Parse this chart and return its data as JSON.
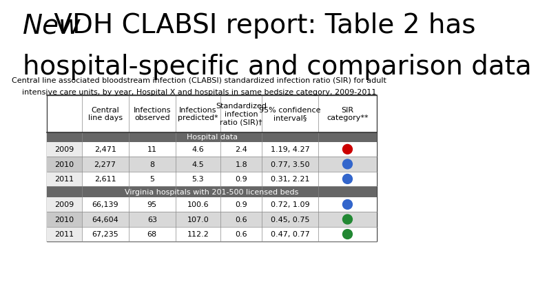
{
  "title_italic_part": "New",
  "title_normal_part": " VDH CLABSI report: Table 2 has",
  "title_line2": "hospital-specific and comparison data",
  "subtitle_line1": "Central line associated bloodstream infection (CLABSI) standardized infection ratio (SIR) for adult",
  "subtitle_line2": "intensive care units, by year, Hospital X and hospitals in same bedsize category, 2009-2011",
  "col_headers": [
    "Central\nline days",
    "Infections\nobserved",
    "Infections\npredicted*",
    "Standardized\ninfection\nratio (SIR)†",
    "95% confidence\ninterval§",
    "SIR\ncategory**"
  ],
  "section1_label": "Hospital data",
  "section2_label": "Virginia hospitals with 201-500 licensed beds",
  "rows": [
    {
      "year": "2009",
      "values": [
        "2,471",
        "11",
        "4.6",
        "2.4",
        "1.19, 4.27"
      ],
      "circle_color": "#cc0000",
      "shaded": false
    },
    {
      "year": "2010",
      "values": [
        "2,277",
        "8",
        "4.5",
        "1.8",
        "0.77, 3.50"
      ],
      "circle_color": "#3366cc",
      "shaded": true
    },
    {
      "year": "2011",
      "values": [
        "2,611",
        "5",
        "5.3",
        "0.9",
        "0.31, 2.21"
      ],
      "circle_color": "#3366cc",
      "shaded": false
    },
    {
      "year": "2009",
      "values": [
        "66,139",
        "95",
        "100.6",
        "0.9",
        "0.72, 1.09"
      ],
      "circle_color": "#3366cc",
      "shaded": false
    },
    {
      "year": "2010",
      "values": [
        "64,604",
        "63",
        "107.0",
        "0.6",
        "0.45, 0.75"
      ],
      "circle_color": "#228833",
      "shaded": true
    },
    {
      "year": "2011",
      "values": [
        "67,235",
        "68",
        "112.2",
        "0.6",
        "0.47, 0.77"
      ],
      "circle_color": "#228833",
      "shaded": false
    }
  ],
  "section_header_bg": "#666666",
  "section_header_text": "#ffffff",
  "shaded_row_bg": "#d8d8d8",
  "unshaded_row_bg": "#ffffff",
  "year_col_bg": "#ebebeb",
  "year_col_shaded_bg": "#c8c8c8",
  "bg_color": "#ffffff",
  "title_fontsize": 28,
  "subtitle_fontsize": 8,
  "table_fontsize": 8,
  "header_fontsize": 8
}
